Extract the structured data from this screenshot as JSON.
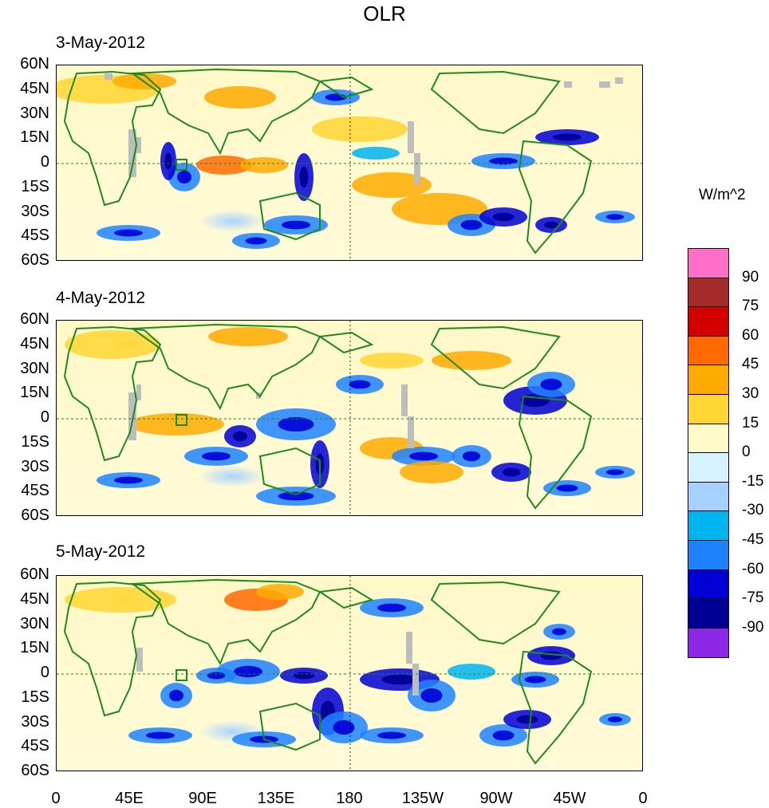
{
  "title": "OLR",
  "panels": [
    {
      "date": "3-May-2012"
    },
    {
      "date": "4-May-2012"
    },
    {
      "date": "5-May-2012"
    }
  ],
  "lat_labels": [
    "60N",
    "45N",
    "30N",
    "15N",
    "0",
    "15S",
    "30S",
    "45S",
    "60S"
  ],
  "lon_labels": [
    "0",
    "45E",
    "90E",
    "135E",
    "180",
    "135W",
    "90W",
    "45W",
    "0"
  ],
  "colorbar": {
    "units": "W/m^2",
    "labels": [
      "90",
      "75",
      "60",
      "45",
      "30",
      "15",
      "0",
      "-15",
      "-30",
      "-45",
      "-60",
      "-75",
      "-90"
    ],
    "colors": [
      "#ff6ec7",
      "#a52a2a",
      "#d40000",
      "#ff6a00",
      "#ffaa00",
      "#ffd633",
      "#fffac8",
      "#d6f2ff",
      "#a6d0ff",
      "#00b4f0",
      "#1e82ff",
      "#0000d6",
      "#000096",
      "#8c28e6"
    ]
  },
  "coastline_color": "#1f8a1f"
}
